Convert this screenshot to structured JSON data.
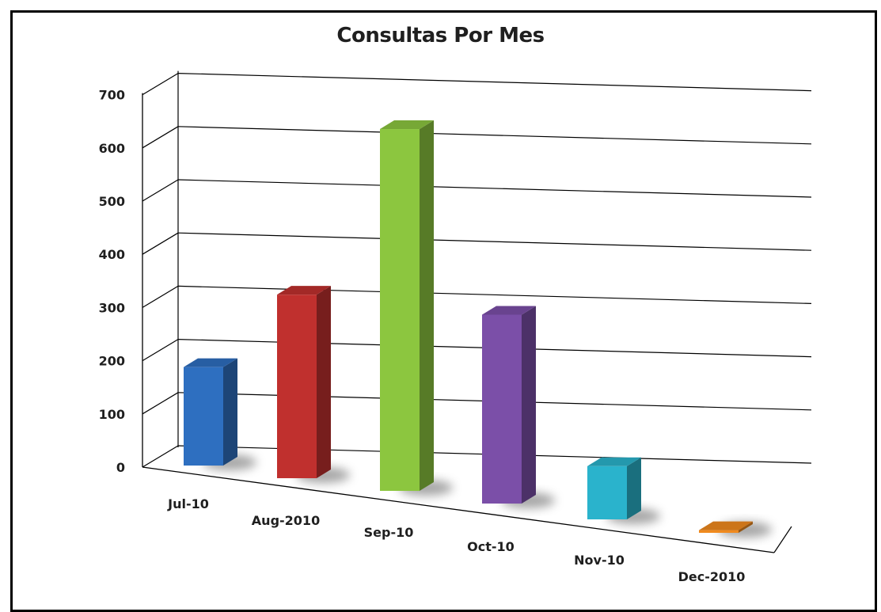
{
  "chart_data": {
    "type": "bar",
    "title": "Consultas Por Mes",
    "xlabel": "",
    "ylabel": "",
    "categories": [
      "Jul-10",
      "Aug-2010",
      "Sep-10",
      "Oct-10",
      "Nov-10",
      "Dec-2010"
    ],
    "values": [
      185,
      345,
      680,
      355,
      100,
      5
    ],
    "colors": [
      "#2e6fc0",
      "#c0302e",
      "#8cc63f",
      "#7b4fa8",
      "#2ab3cc",
      "#f08a1e"
    ],
    "ylim": [
      0,
      700
    ],
    "yticks": [
      0,
      100,
      200,
      300,
      400,
      500,
      600,
      700
    ],
    "grid": true
  }
}
